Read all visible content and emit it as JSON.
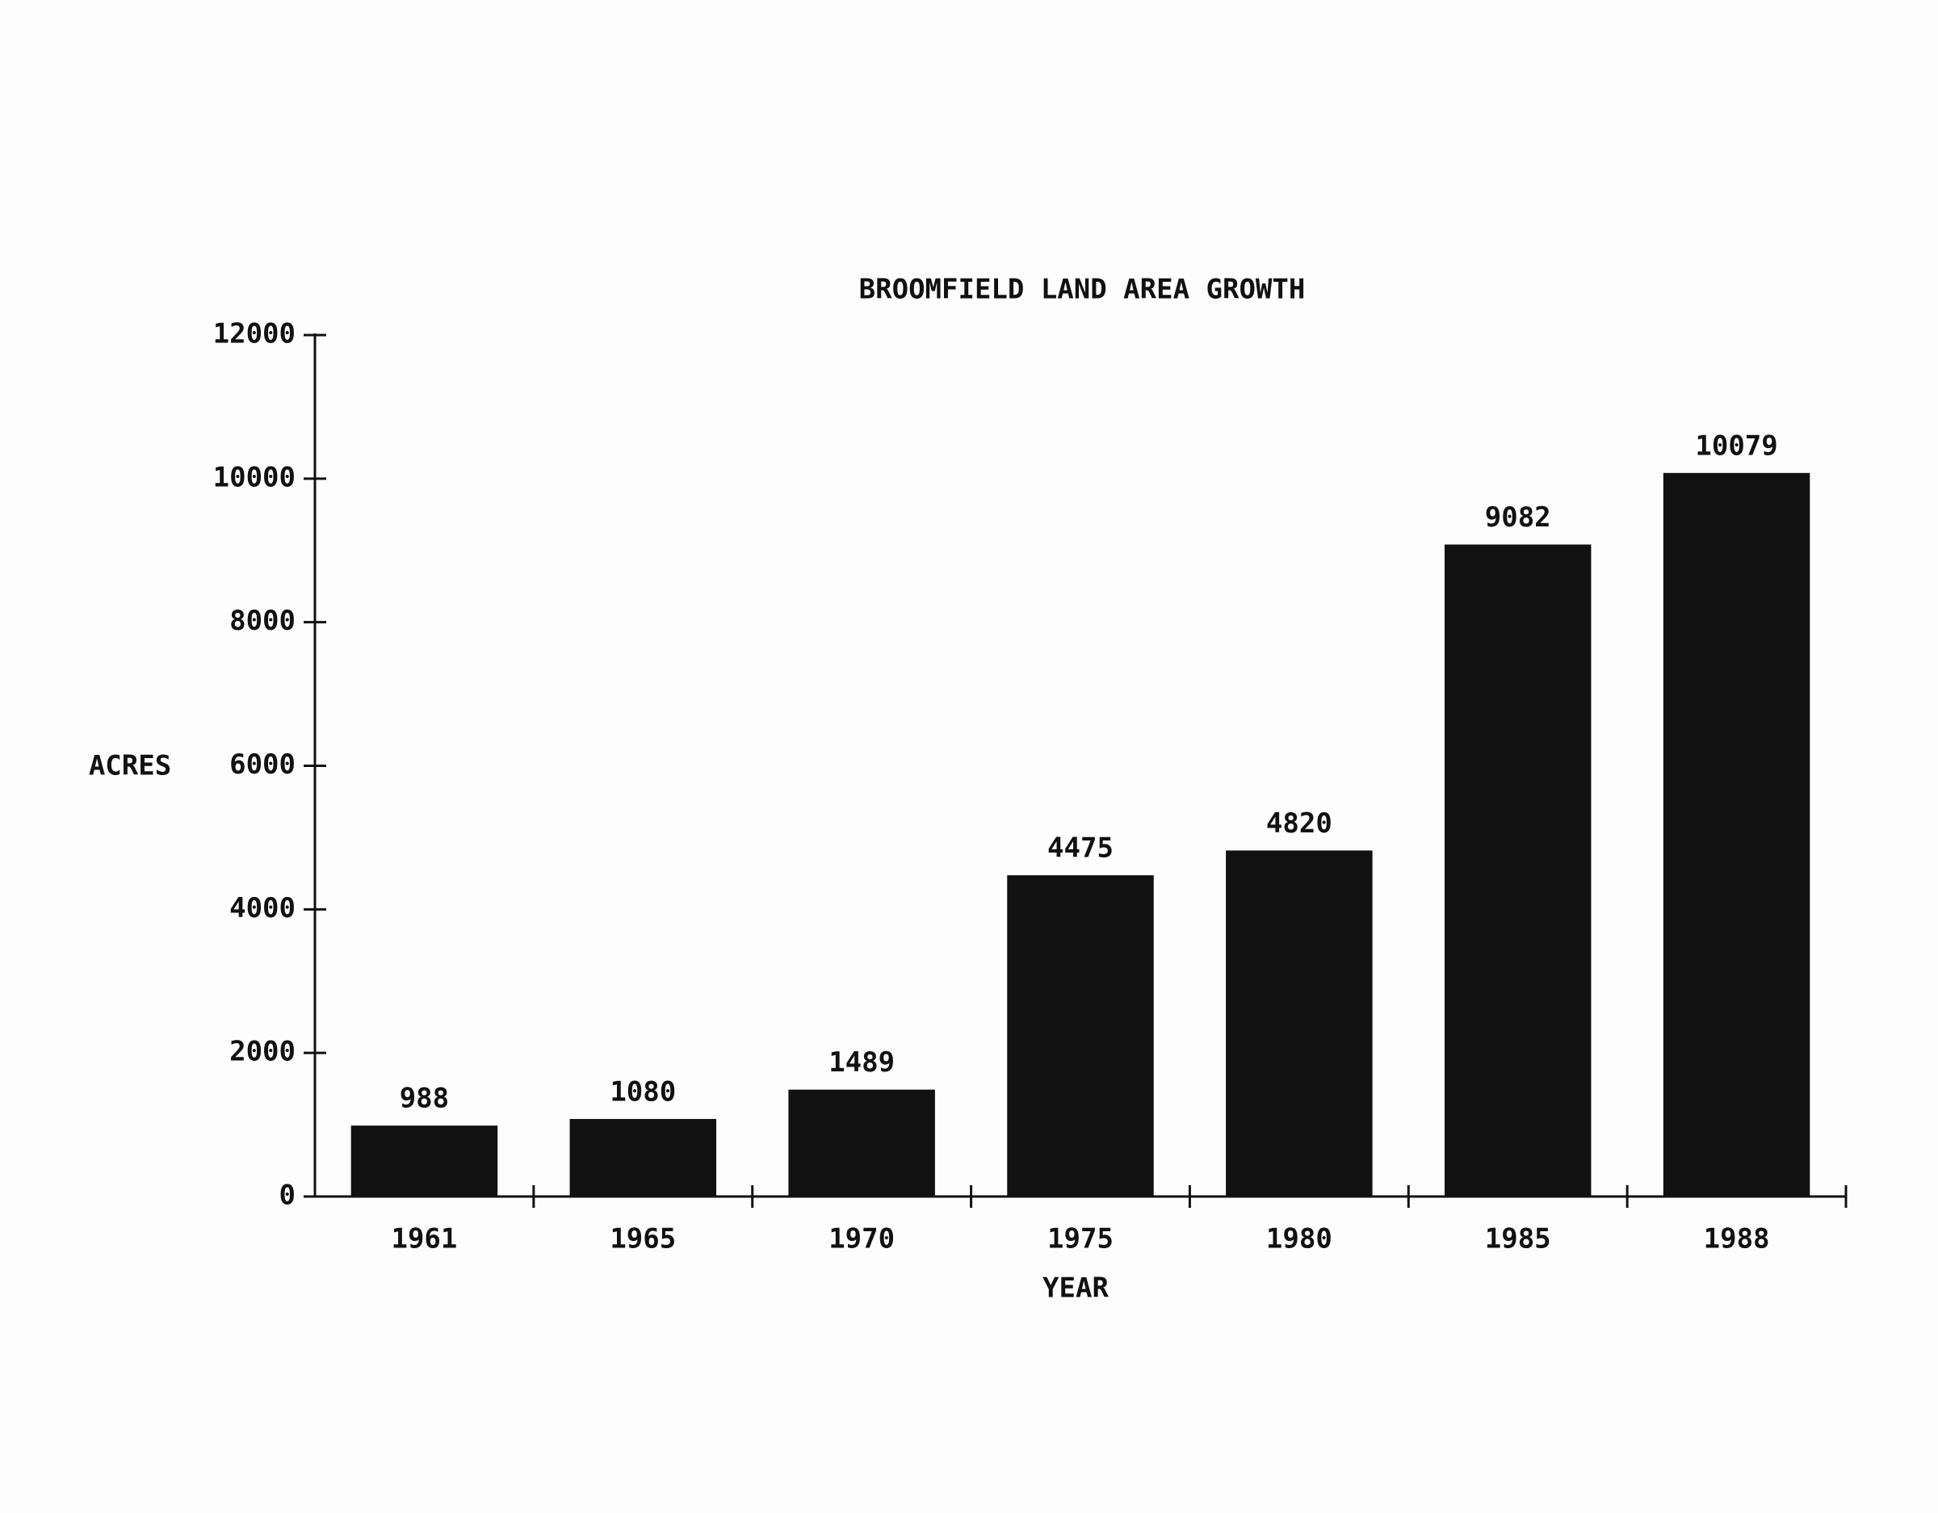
{
  "chart_data": {
    "type": "bar",
    "title": "BROOMFIELD LAND AREA GROWTH",
    "x_label": "YEAR",
    "y_label": "ACRES",
    "categories": [
      "1961",
      "1965",
      "1970",
      "1975",
      "1980",
      "1985",
      "1988"
    ],
    "values": [
      988,
      1080,
      1489,
      4475,
      4820,
      9082,
      10079
    ],
    "color": "#111111",
    "ylim": [
      0,
      12000
    ],
    "yticks": [
      0,
      2000,
      4000,
      6000,
      8000,
      10000,
      12000
    ],
    "grid": false
  }
}
